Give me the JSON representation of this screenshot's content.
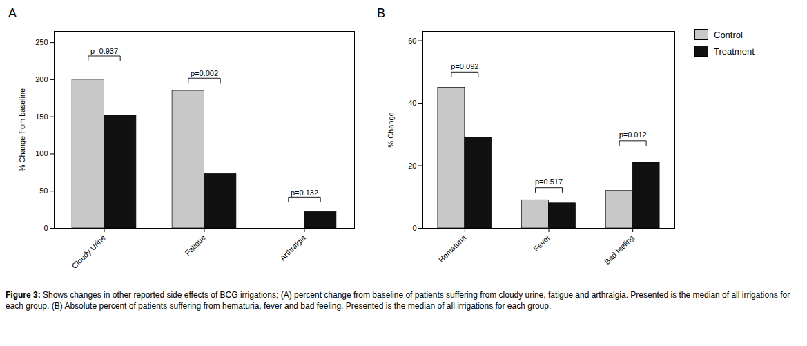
{
  "caption": {
    "label": "Figure 3:",
    "text": " Shows changes in other reported side effects of BCG irrigations; (A) percent change from baseline of patients suffering from cloudy urine, fatigue and arthralgia. Presented is the median of all irrigations for each group. (B) Absolute percent of patients suffering from hematuria, fever and bad feeling. Presented is the median of all irrigations for each group."
  },
  "chart_data": [
    {
      "type": "bar",
      "title": "A",
      "categories": [
        "Cloudy Urine",
        "Fatigue",
        "Arthralgia"
      ],
      "series": [
        {
          "name": "Control",
          "color": "#c8c8c8",
          "values": [
            200,
            185,
            0
          ]
        },
        {
          "name": "Treatment",
          "color": "#111111",
          "values": [
            152,
            73,
            22
          ]
        }
      ],
      "ylabel": "% Change from baseline",
      "ylim": [
        0,
        265
      ],
      "yticks": [
        0,
        50,
        100,
        150,
        200,
        250
      ],
      "grid": false,
      "legend": false,
      "annotations": [
        {
          "text": "p=0.937",
          "category": "Cloudy Urine",
          "y": 232,
          "text_y": 235
        },
        {
          "text": "p=0.002",
          "category": "Fatigue",
          "y": 202,
          "text_y": 205
        },
        {
          "text": "p=0.132",
          "category": "Arthralgia",
          "y": 42,
          "text_y": 44
        }
      ]
    },
    {
      "type": "bar",
      "title": "B",
      "categories": [
        "Hematuria",
        "Fever",
        "Bad feeling"
      ],
      "series": [
        {
          "name": "Control",
          "color": "#c8c8c8",
          "values": [
            45,
            9,
            12
          ]
        },
        {
          "name": "Treatment",
          "color": "#111111",
          "values": [
            29,
            8,
            21
          ]
        }
      ],
      "ylabel": "% Change",
      "ylim": [
        0,
        63
      ],
      "yticks": [
        0,
        20,
        40,
        60
      ],
      "grid": false,
      "legend": "right",
      "annotations": [
        {
          "text": "p=0.092",
          "category": "Hematuria",
          "y": 50,
          "text_y": 51
        },
        {
          "text": "p=0.517",
          "category": "Fever",
          "y": 13,
          "text_y": 14
        },
        {
          "text": "p=0.012",
          "category": "Bad feeling",
          "y": 28,
          "text_y": 29
        }
      ]
    }
  ]
}
